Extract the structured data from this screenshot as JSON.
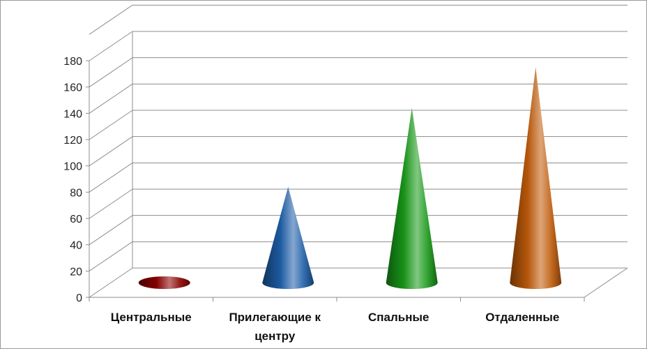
{
  "chart_data": {
    "type": "bar",
    "style": "3d-cone",
    "title": "",
    "xlabel": "",
    "ylabel": "",
    "ylim": [
      0,
      180
    ],
    "yticks": [
      0,
      20,
      40,
      60,
      80,
      100,
      120,
      140,
      160,
      180
    ],
    "ytick_labels": [
      "0",
      "20",
      "40",
      "60",
      "80",
      "100",
      "120",
      "140",
      "160",
      "180"
    ],
    "categories": [
      {
        "lines": [
          "Центральные"
        ]
      },
      {
        "lines": [
          "Прилегающие к",
          "центру"
        ]
      },
      {
        "lines": [
          "Спальные"
        ]
      },
      {
        "lines": [
          "Отдаленные"
        ]
      }
    ],
    "values": [
      2,
      73,
      133,
      164
    ],
    "colors": [
      "#8b0000",
      "#1f5fa8",
      "#1a9a1a",
      "#c05c0a"
    ],
    "grid": true,
    "legend": "none"
  }
}
